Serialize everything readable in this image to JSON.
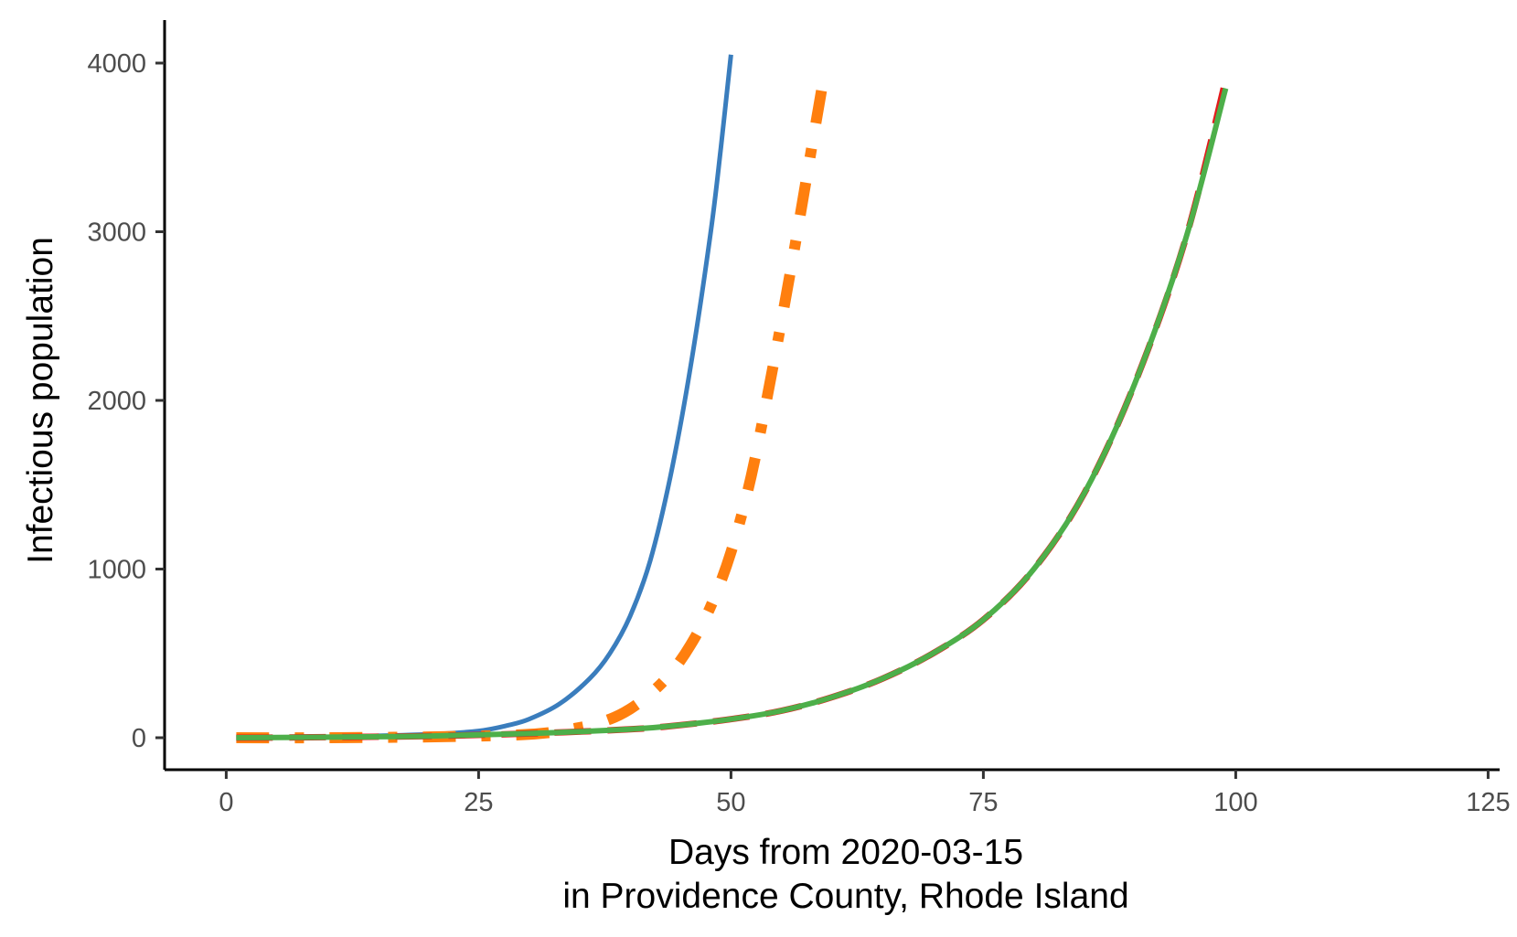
{
  "chart_data": {
    "type": "line",
    "title": "",
    "xlabel_line1": "Days from 2020-03-15",
    "xlabel_line2": "in Providence County, Rhode Island",
    "ylabel": "Infectious population",
    "xlim": [
      -3,
      125
    ],
    "ylim": [
      -200,
      4300
    ],
    "x_ticks": [
      0,
      25,
      50,
      75,
      100,
      125
    ],
    "y_ticks": [
      0,
      1000,
      2000,
      3000,
      4000
    ],
    "grid": false,
    "legend": "none",
    "series": [
      {
        "color": "#3a7dbd",
        "dash": "solid",
        "width": 5,
        "x": [
          1,
          10,
          20,
          25,
          28,
          30,
          33,
          36,
          38,
          40,
          42,
          44,
          46,
          48,
          49,
          50
        ],
        "y": [
          0,
          5,
          20,
          40,
          75,
          110,
          200,
          350,
          500,
          720,
          1050,
          1550,
          2200,
          3000,
          3500,
          4050
        ]
      },
      {
        "color": "#ff7f0e",
        "dash": "dashdot",
        "width": 12,
        "x": [
          1,
          10,
          20,
          30,
          35,
          38,
          40,
          42,
          44,
          46,
          48,
          50,
          52,
          54,
          56,
          58,
          59
        ],
        "y": [
          0,
          0,
          5,
          20,
          60,
          110,
          170,
          260,
          380,
          550,
          780,
          1100,
          1550,
          2150,
          2800,
          3500,
          3850
        ]
      },
      {
        "color": "#e31a1c",
        "dash": "longdash",
        "width": 7,
        "x": [
          1,
          10,
          20,
          30,
          40,
          45,
          50,
          55,
          60,
          65,
          70,
          75,
          80,
          85,
          90,
          95,
          99
        ],
        "y": [
          0,
          3,
          10,
          25,
          50,
          75,
          110,
          160,
          240,
          350,
          500,
          700,
          1000,
          1450,
          2100,
          2950,
          3900
        ]
      },
      {
        "color": "#4daf4a",
        "dash": "solid",
        "width": 6,
        "x": [
          1,
          10,
          20,
          30,
          40,
          45,
          50,
          55,
          60,
          65,
          70,
          75,
          80,
          85,
          90,
          95,
          99
        ],
        "y": [
          0,
          3,
          10,
          25,
          50,
          75,
          110,
          160,
          240,
          350,
          500,
          700,
          1000,
          1450,
          2100,
          2950,
          3850
        ]
      }
    ]
  }
}
